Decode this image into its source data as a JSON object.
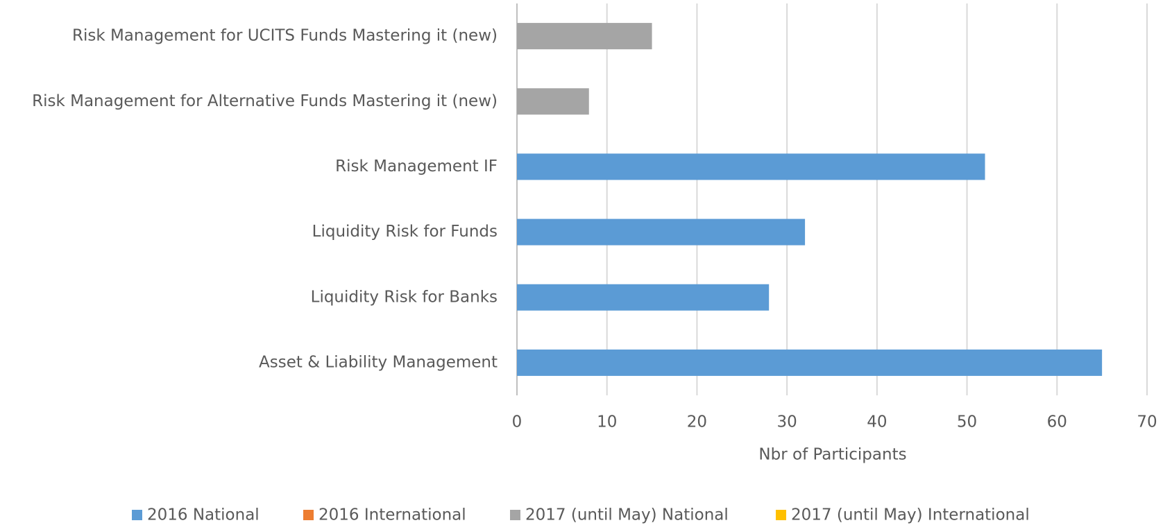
{
  "chart_data": {
    "type": "bar",
    "orientation": "horizontal",
    "stacked": true,
    "x_label": "Nbr of Participants",
    "categories": [
      "Risk Management for UCITS Funds Mastering it (new)",
      "Risk Management for Alternative Funds Mastering it (new)",
      "Risk Management IF",
      "Liquidity Risk for Funds",
      "Liquidity Risk for Banks",
      "Asset & Liability Management"
    ],
    "series": [
      {
        "name": "2016 National",
        "color": "#5b9bd5",
        "values": [
          null,
          null,
          52,
          32,
          28,
          65
        ]
      },
      {
        "name": "2016 International",
        "color": "#ed7d31",
        "values": [
          null,
          null,
          null,
          null,
          null,
          null
        ]
      },
      {
        "name": "2017 (until May) National",
        "color": "#a5a5a5",
        "values": [
          15,
          8,
          null,
          null,
          null,
          null
        ]
      },
      {
        "name": "2017 (until May) International",
        "color": "#ffc000",
        "values": [
          null,
          null,
          null,
          null,
          null,
          null
        ]
      }
    ],
    "xlim": [
      0,
      70
    ],
    "xticks": [
      0,
      10,
      20,
      30,
      40,
      50,
      60,
      70
    ],
    "grid": true,
    "legend": "bottom"
  }
}
